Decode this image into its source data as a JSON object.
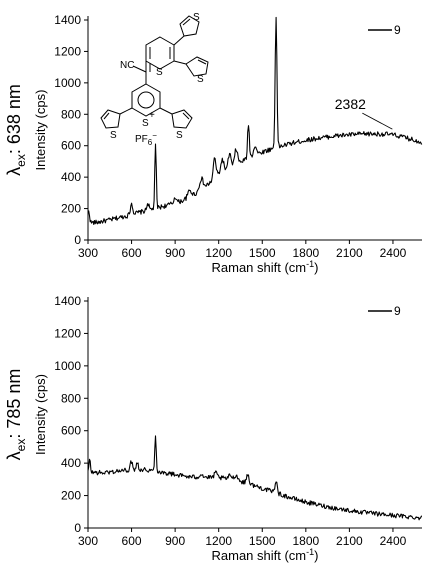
{
  "molecule": {
    "nc_label": "NC",
    "sulfur": "S",
    "sulfur_charged": "S",
    "plus": "+",
    "counterion": "PF",
    "counterion_sub": "6",
    "counterion_sup": "−"
  },
  "chart_data": [
    {
      "type": "line",
      "side_label": {
        "base": "λ",
        "sub": "ex",
        "rest": ": 638 nm"
      },
      "xlabel": "Raman shift (cm",
      "xlabel_sup": "-1",
      "xlabel_close": ")",
      "ylabel": "Intensity (cps)",
      "xlim": [
        300,
        2600
      ],
      "ylim": [
        0,
        1400
      ],
      "xticks": [
        300,
        600,
        900,
        1200,
        1500,
        1800,
        2100,
        2400
      ],
      "yticks": [
        0,
        200,
        400,
        600,
        800,
        1000,
        1200,
        1400
      ],
      "legend": "9",
      "annotation": {
        "text": "2382",
        "x": 2382,
        "y": 680
      },
      "series": [
        {
          "name": "9",
          "baseline": [
            [
              300,
              110
            ],
            [
              360,
              112
            ],
            [
              450,
              128
            ],
            [
              550,
              150
            ],
            [
              650,
              175
            ],
            [
              750,
              198
            ],
            [
              850,
              222
            ],
            [
              950,
              250
            ],
            [
              1050,
              300
            ],
            [
              1150,
              370
            ],
            [
              1200,
              420
            ],
            [
              1300,
              470
            ],
            [
              1400,
              520
            ],
            [
              1500,
              560
            ],
            [
              1600,
              590
            ],
            [
              1700,
              615
            ],
            [
              1800,
              635
            ],
            [
              1900,
              650
            ],
            [
              2000,
              662
            ],
            [
              2100,
              670
            ],
            [
              2200,
              675
            ],
            [
              2300,
              675
            ],
            [
              2382,
              672
            ],
            [
              2450,
              660
            ],
            [
              2520,
              642
            ],
            [
              2600,
              622
            ]
          ],
          "peaks": [
            [
              305,
              75,
              6
            ],
            [
              600,
              70,
              8
            ],
            [
              712,
              45,
              7
            ],
            [
              765,
              400,
              5
            ],
            [
              900,
              40,
              8
            ],
            [
              1000,
              40,
              12
            ],
            [
              1080,
              70,
              12
            ],
            [
              1172,
              130,
              9
            ],
            [
              1225,
              80,
              10
            ],
            [
              1275,
              95,
              9
            ],
            [
              1320,
              100,
              10
            ],
            [
              1405,
              215,
              6
            ],
            [
              1450,
              60,
              10
            ],
            [
              1595,
              840,
              6
            ]
          ],
          "noise": 15
        }
      ]
    },
    {
      "type": "line",
      "side_label": {
        "base": "λ",
        "sub": "ex",
        "rest": ": 785 nm"
      },
      "xlabel": "Raman shift (cm",
      "xlabel_sup": "-1",
      "xlabel_close": ")",
      "ylabel": "Intensity (cps)",
      "xlim": [
        300,
        2600
      ],
      "ylim": [
        0,
        1400
      ],
      "xticks": [
        300,
        600,
        900,
        1200,
        1500,
        1800,
        2100,
        2400
      ],
      "yticks": [
        0,
        200,
        400,
        600,
        800,
        1000,
        1200,
        1400
      ],
      "legend": "9",
      "series": [
        {
          "name": "9",
          "baseline": [
            [
              300,
              345
            ],
            [
              400,
              340
            ],
            [
              500,
              350
            ],
            [
              600,
              360
            ],
            [
              700,
              360
            ],
            [
              800,
              345
            ],
            [
              900,
              330
            ],
            [
              1000,
              315
            ],
            [
              1100,
              312
            ],
            [
              1200,
              310
            ],
            [
              1300,
              300
            ],
            [
              1400,
              275
            ],
            [
              1500,
              245
            ],
            [
              1600,
              215
            ],
            [
              1700,
              185
            ],
            [
              1800,
              160
            ],
            [
              1900,
              140
            ],
            [
              2000,
              122
            ],
            [
              2100,
              108
            ],
            [
              2200,
              96
            ],
            [
              2300,
              86
            ],
            [
              2400,
              78
            ],
            [
              2500,
              70
            ],
            [
              2600,
              62
            ]
          ],
          "peaks": [
            [
              312,
              75,
              5
            ],
            [
              600,
              50,
              8
            ],
            [
              640,
              45,
              7
            ],
            [
              765,
              220,
              5
            ],
            [
              1080,
              20,
              12
            ],
            [
              1180,
              30,
              10
            ],
            [
              1280,
              25,
              10
            ],
            [
              1320,
              30,
              12
            ],
            [
              1400,
              60,
              8
            ],
            [
              1595,
              80,
              7
            ]
          ],
          "noise": 14
        }
      ]
    }
  ]
}
